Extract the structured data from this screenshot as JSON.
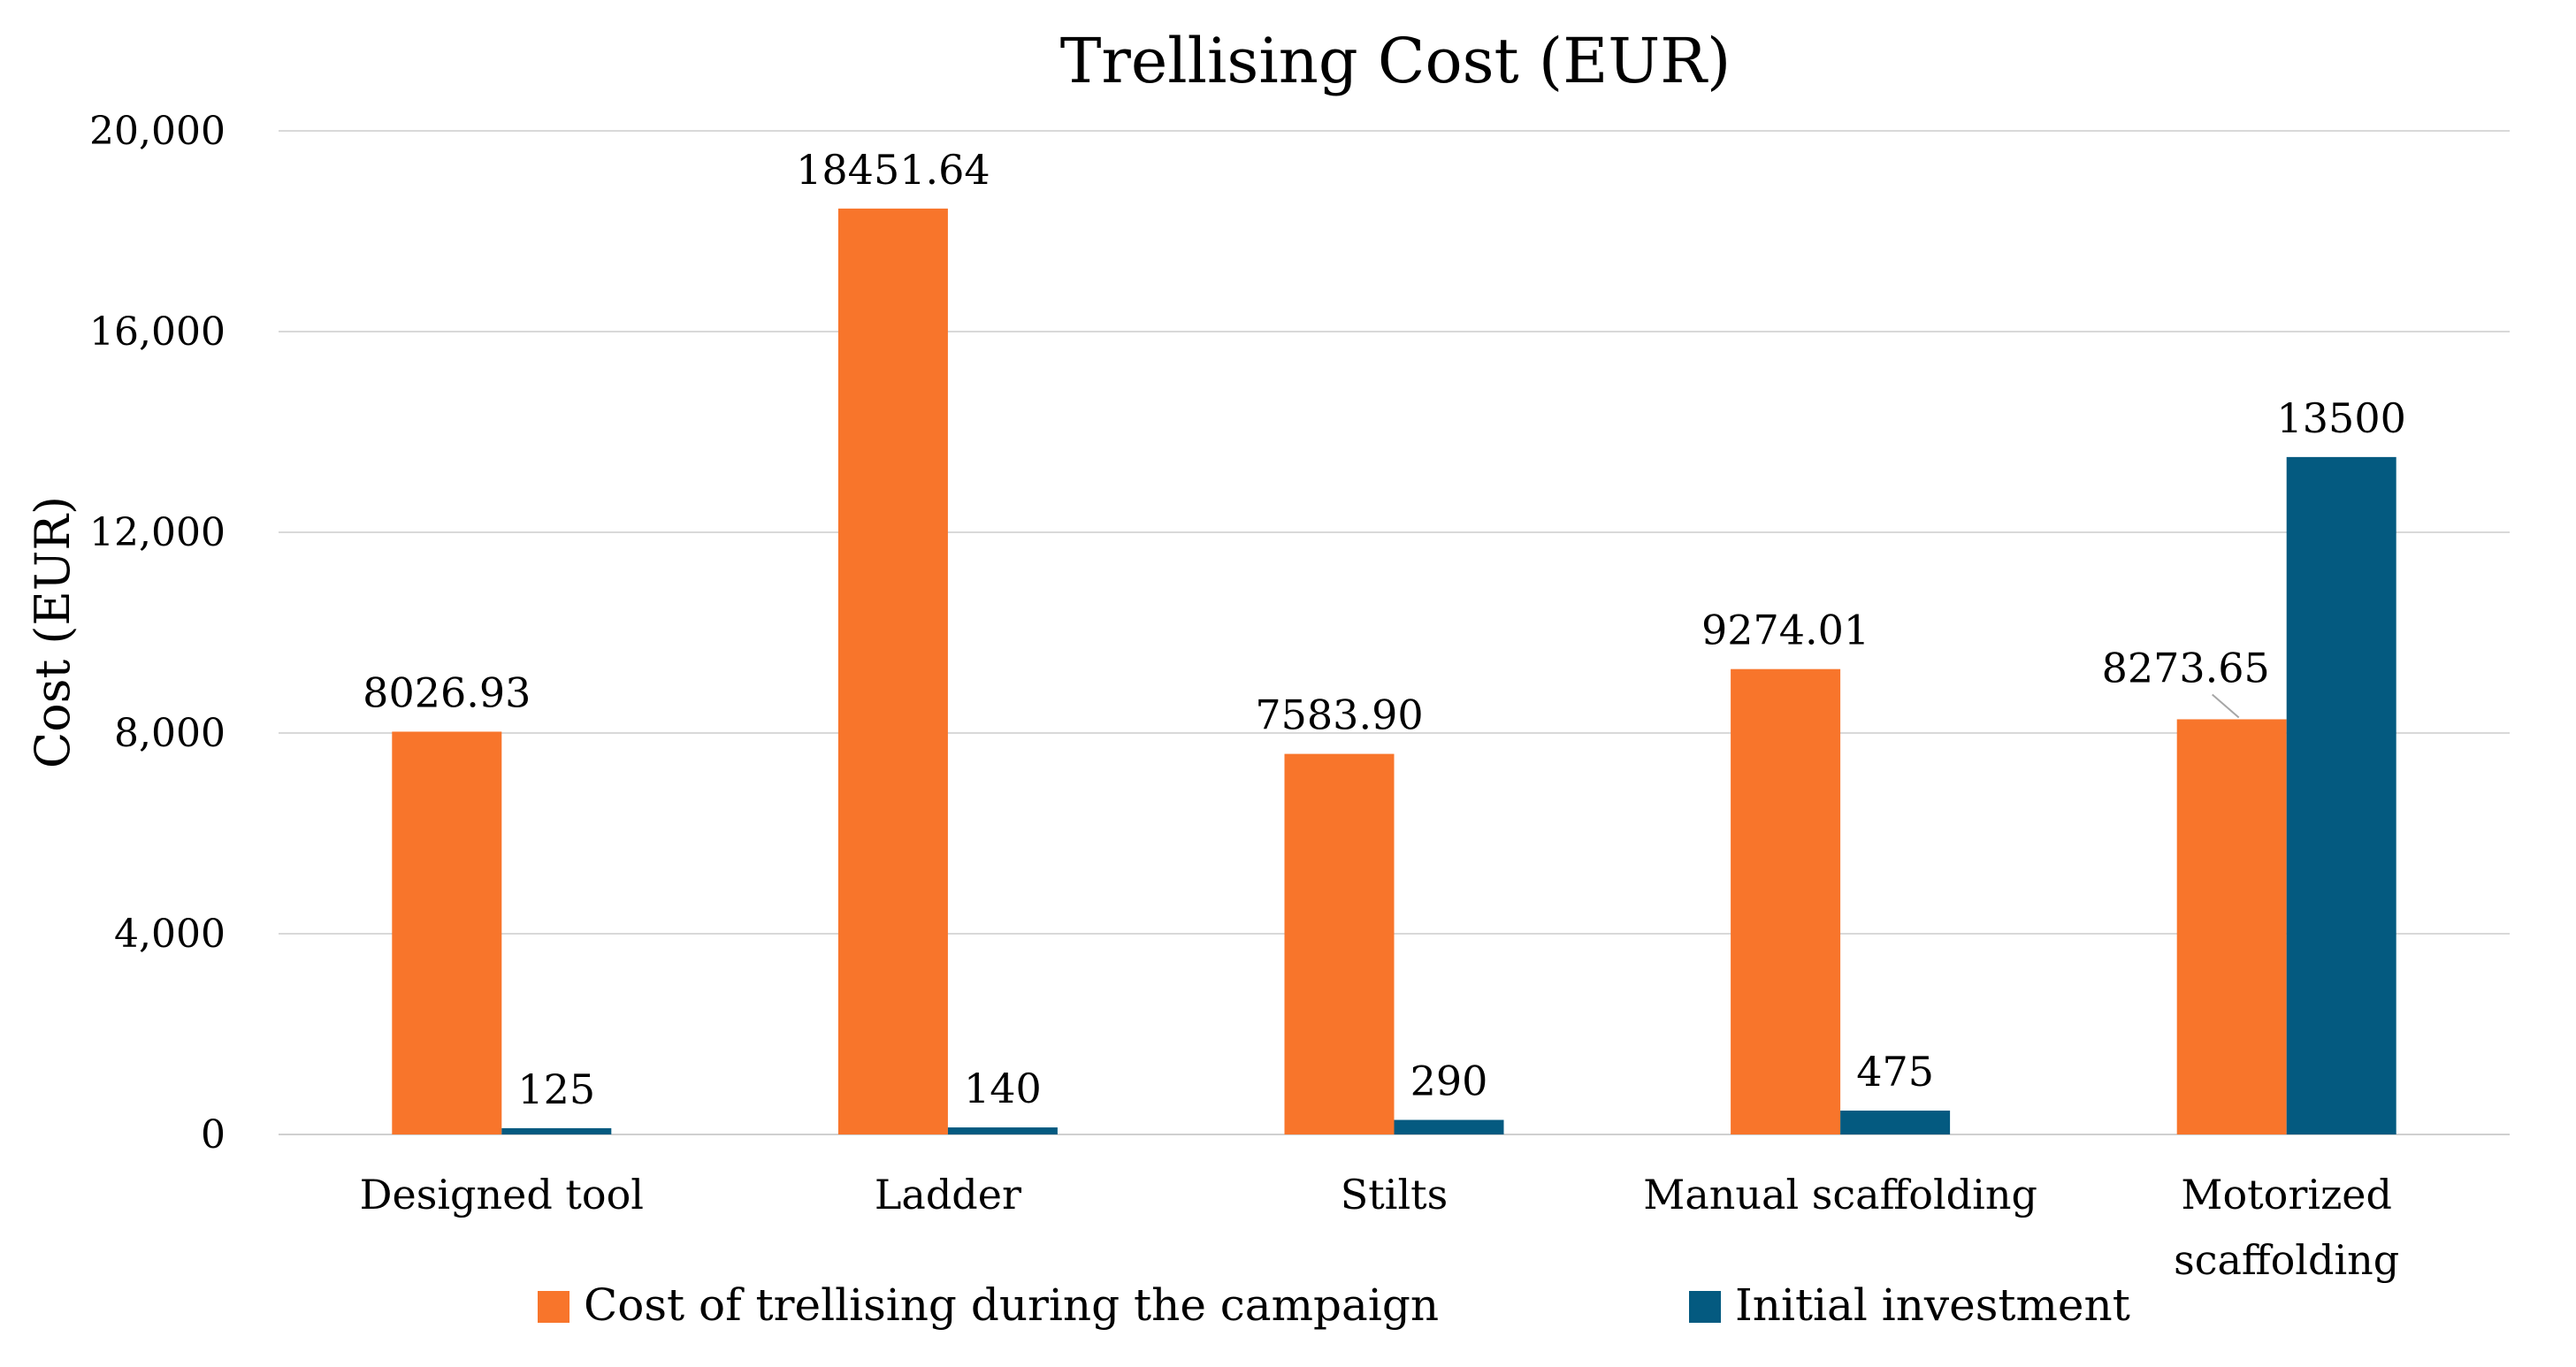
{
  "chart_data": {
    "type": "bar",
    "title": "Trellising Cost (EUR)",
    "xlabel": "",
    "ylabel": "Cost (EUR)",
    "ylim": [
      0,
      20000
    ],
    "yticks": [
      0,
      4000,
      8000,
      12000,
      16000,
      20000
    ],
    "ytick_labels": [
      "0",
      "4,000",
      "8,000",
      "12,000",
      "16,000",
      "20,000"
    ],
    "grid": true,
    "legend_position": "bottom",
    "categories": [
      [
        "Designed tool"
      ],
      [
        "Ladder"
      ],
      [
        "Stilts"
      ],
      [
        "Manual scaffolding"
      ],
      [
        "Motorized",
        "scaffolding"
      ]
    ],
    "series": [
      {
        "name": "Cost of trellising during the campaign",
        "color": "#F8752B",
        "values": [
          8026.93,
          18451.64,
          7583.9,
          9274.01,
          8273.65
        ],
        "labels": [
          "8026.93",
          "18451.64",
          "7583.90",
          "9274.01",
          "8273.65"
        ]
      },
      {
        "name": "Initial investment",
        "color": "#045A80",
        "values": [
          125,
          140,
          290,
          475,
          13500
        ],
        "labels": [
          "125",
          "140",
          "290",
          "475",
          "13500"
        ]
      }
    ]
  }
}
